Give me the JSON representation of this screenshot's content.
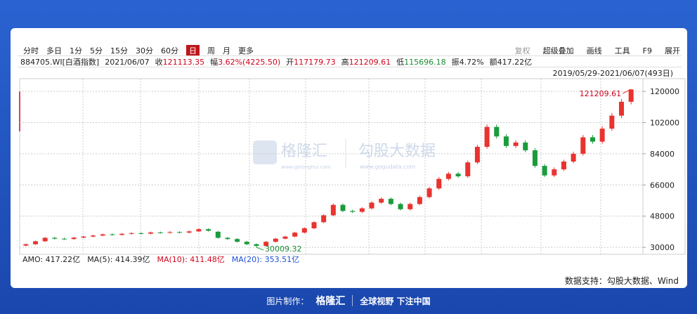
{
  "toolbar": {
    "periods": [
      "分时",
      "多日",
      "1分",
      "5分",
      "15分",
      "30分",
      "60分",
      "日",
      "周",
      "月",
      "更多"
    ],
    "active": 7,
    "tools": [
      "复权",
      "超级叠加",
      "画线",
      "工具",
      "F9",
      "展开"
    ]
  },
  "quote": {
    "code": "884705.WI[白酒指数]",
    "date": "2021/06/07",
    "fields": [
      {
        "label": "收",
        "value": "121113.35",
        "color": "#d0021b"
      },
      {
        "label": "幅",
        "value": "3.62%(4225.50)",
        "color": "#d0021b"
      },
      {
        "label": "开",
        "value": "117179.73",
        "color": "#d0021b"
      },
      {
        "label": "高",
        "value": "121209.61",
        "color": "#d0021b"
      },
      {
        "label": "低",
        "value": "115696.18",
        "color": "#1a8a35"
      },
      {
        "label": "振",
        "value": "4.72%",
        "color": "#222222"
      },
      {
        "label": "额",
        "value": "417.22亿",
        "color": "#222222"
      }
    ]
  },
  "range": "2019/05/29-2021/06/07(493日)",
  "chart_data": {
    "type": "candlestick",
    "open": [
      31000,
      31800,
      33500,
      35500,
      35000,
      34800,
      35600,
      36200,
      36800,
      37500,
      37200,
      37800,
      38200,
      37900,
      38600,
      38400,
      38800,
      38500,
      39200,
      40500,
      39000,
      35500,
      34800,
      33200,
      31800,
      30800,
      33200,
      35000,
      36200,
      38500,
      41000,
      44500,
      48500,
      54500,
      51000,
      50500,
      52500,
      55800,
      58000,
      55000,
      52000,
      55000,
      59000,
      64000,
      69500,
      72500,
      71000,
      79000,
      88000,
      99500,
      94000,
      88500,
      90500,
      86000,
      77000,
      71500,
      75000,
      79500,
      84000,
      93500,
      91000,
      98500,
      106000,
      114000
    ],
    "high": [
      32200,
      33900,
      36000,
      36000,
      35500,
      36100,
      36700,
      37300,
      38000,
      38000,
      38300,
      38700,
      38700,
      39100,
      39100,
      39300,
      39300,
      39700,
      41000,
      41000,
      39500,
      36000,
      35300,
      33700,
      32300,
      33700,
      35500,
      36700,
      39000,
      41600,
      45100,
      49200,
      55300,
      55300,
      51700,
      53200,
      56600,
      58800,
      58800,
      55800,
      55800,
      59800,
      64900,
      70500,
      73500,
      73500,
      80100,
      89200,
      100900,
      100900,
      95300,
      91800,
      91800,
      87200,
      78100,
      76100,
      80600,
      85200,
      94800,
      94800,
      99900,
      107500,
      115600,
      121209.61
    ],
    "low": [
      30600,
      31400,
      33100,
      34500,
      34300,
      34400,
      35200,
      35800,
      36400,
      36700,
      36800,
      37300,
      37400,
      37500,
      37900,
      37900,
      38000,
      38000,
      38800,
      39100,
      35000,
      34300,
      32800,
      31300,
      30009.32,
      30400,
      32800,
      34600,
      35800,
      38000,
      40500,
      44000,
      47900,
      50300,
      49800,
      49800,
      51800,
      55100,
      54300,
      51300,
      51300,
      54300,
      58300,
      63200,
      68600,
      70100,
      70100,
      78000,
      86900,
      92800,
      87400,
      87400,
      84900,
      76000,
      70600,
      70600,
      74100,
      78500,
      82900,
      89800,
      89800,
      97200,
      104700,
      112500
    ],
    "close": [
      31800,
      33500,
      35500,
      35000,
      34800,
      35600,
      36200,
      36800,
      37500,
      37200,
      37800,
      38200,
      37900,
      38600,
      38400,
      38800,
      38500,
      39200,
      40500,
      39600,
      35500,
      34800,
      33200,
      31800,
      30800,
      33200,
      35000,
      36200,
      38500,
      41000,
      44500,
      48500,
      54500,
      51000,
      50500,
      52500,
      55800,
      58000,
      55000,
      52000,
      55000,
      59000,
      64000,
      69500,
      72500,
      71000,
      79000,
      88000,
      99500,
      94000,
      88500,
      90500,
      86000,
      77000,
      71500,
      75000,
      79500,
      84000,
      93500,
      91000,
      98500,
      106000,
      114000,
      121113.35
    ],
    "up_color": "#e8332f",
    "down_color": "#1a9b3c",
    "ylim": [
      26800,
      124900
    ],
    "yticks": [
      30000,
      48000,
      66000,
      84000,
      102000,
      120000
    ],
    "grid": true
  },
  "indicator": {
    "items": [
      {
        "text": "AMO: 417.22亿",
        "color": "#222222"
      },
      {
        "text": "MA(5): 414.39亿",
        "color": "#222222"
      },
      {
        "text": "MA(10): 411.48亿",
        "color": "#d0021b"
      },
      {
        "text": "MA(20): 353.51亿",
        "color": "#1c4fd8"
      }
    ]
  },
  "watermarks": {
    "brand1": "格隆汇",
    "url1": "www.gelonghui.com",
    "brand2": "勾股大数据",
    "url2": "www.gogudata.com"
  },
  "source": "数据支持：勾股大数据、Wind",
  "footer": {
    "made_by": "图片制作：",
    "brand": "格隆汇",
    "slogan": "全球视野 下注中国"
  }
}
